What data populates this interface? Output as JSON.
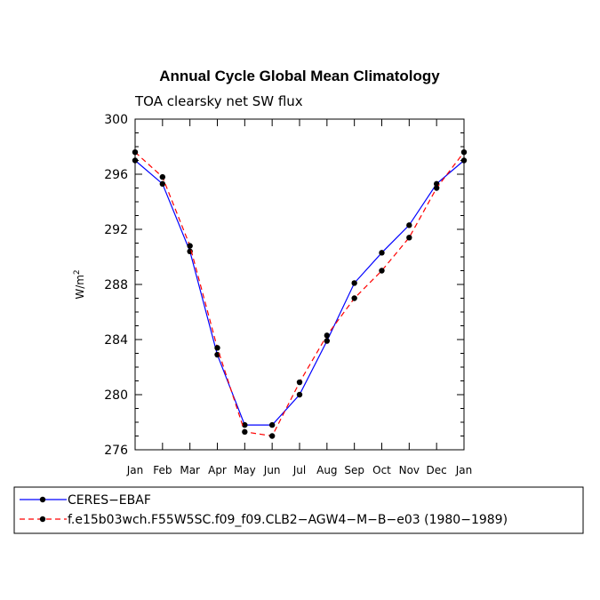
{
  "chart_data": {
    "type": "line",
    "title": "Annual Cycle Global Mean Climatology",
    "subtitle": "TOA clearsky net SW flux",
    "ylabel_base": "W/m",
    "ylabel_sup": "2",
    "categories": [
      "Jan",
      "Feb",
      "Mar",
      "Apr",
      "May",
      "Jun",
      "Jul",
      "Aug",
      "Sep",
      "Oct",
      "Nov",
      "Dec",
      "Jan"
    ],
    "ylim": [
      276,
      300
    ],
    "yticks": [
      276,
      280,
      284,
      288,
      292,
      296,
      300
    ],
    "ytick_labels": [
      "276",
      "280",
      "284",
      "288",
      "292",
      "296",
      "300"
    ],
    "grid": false,
    "legend_position": "bottom",
    "series": [
      {
        "name": "CERES−EBAF",
        "color": "#0000ff",
        "dash": "solid",
        "values": [
          297.0,
          295.3,
          290.4,
          282.9,
          277.8,
          277.8,
          280.0,
          283.9,
          288.1,
          290.3,
          292.3,
          295.3,
          297.0
        ]
      },
      {
        "name": "f.e15b03wch.F55W5SC.f09_f09.CLB2−AGW4−M−B−e03 (1980−1989)",
        "color": "#ff0000",
        "dash": "dashed",
        "values": [
          297.6,
          295.8,
          290.8,
          283.4,
          277.3,
          277.0,
          280.9,
          284.3,
          287.0,
          289.0,
          291.4,
          295.0,
          297.6
        ]
      }
    ]
  }
}
